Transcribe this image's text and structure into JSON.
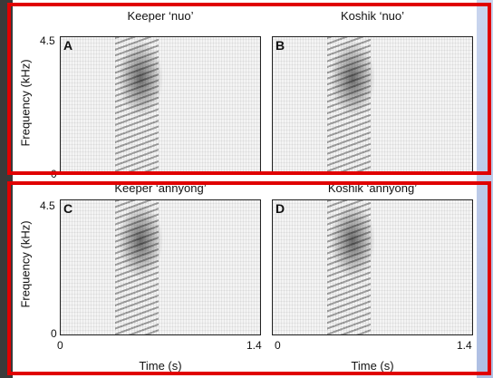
{
  "panels": [
    {
      "title": "Keeper ‘nuo’",
      "letter": "A"
    },
    {
      "title": "Koshik ‘nuo’",
      "letter": "B"
    },
    {
      "title": "Keeper ‘annyong’",
      "letter": "C"
    },
    {
      "title": "Koshik ‘annyong’",
      "letter": "D"
    }
  ],
  "y_axis": {
    "label": "Frequency (kHz)",
    "top_tick": "4.5",
    "bottom_tick": "0"
  },
  "x_axis": {
    "label": "Time (s)",
    "left_tick": "0",
    "right_tick": "1.4"
  }
}
